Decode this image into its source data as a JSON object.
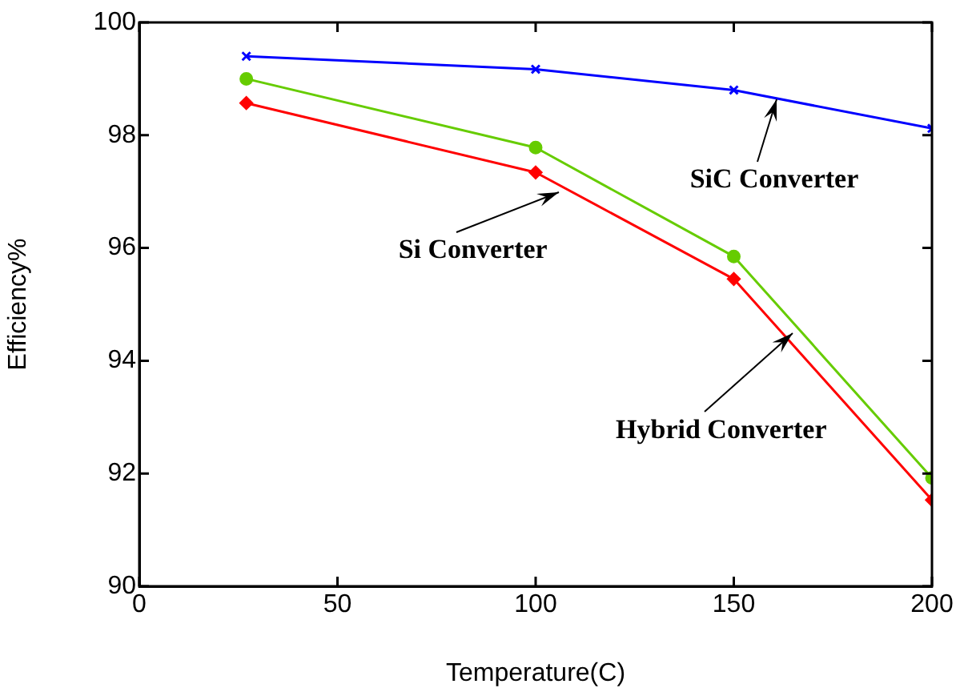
{
  "chart_data": {
    "type": "line",
    "xlabel": "Temperature(C)",
    "ylabel": "Efficiency%",
    "xlim": [
      0,
      200
    ],
    "xticks": [
      0,
      50,
      100,
      150,
      200
    ],
    "ylim": [
      90,
      100
    ],
    "yticks": [
      90,
      92,
      94,
      96,
      98,
      100
    ],
    "grid": false,
    "legend": false,
    "line_style": "solid",
    "series": [
      {
        "color": "#0000ff",
        "marker": "cross",
        "x": [
          27,
          100,
          150,
          200
        ],
        "values": [
          99.4,
          99.17,
          98.8,
          98.12
        ]
      },
      {
        "color": "#66cc00",
        "marker": "circle",
        "x": [
          27,
          100,
          150,
          200
        ],
        "values": [
          99.0,
          97.78,
          95.85,
          91.92
        ]
      },
      {
        "color": "#ff0000",
        "marker": "diamond",
        "x": [
          27,
          100,
          150,
          200
        ],
        "values": [
          98.57,
          97.34,
          95.45,
          91.53
        ]
      }
    ],
    "annotations": [
      {
        "text": "SiC Converter",
        "x": 161,
        "y": 98.65
      },
      {
        "text": "Si Converter",
        "x": 106,
        "y": 97.0
      },
      {
        "text": "Hybrid Converter",
        "x": 165,
        "y": 94.48
      }
    ]
  }
}
